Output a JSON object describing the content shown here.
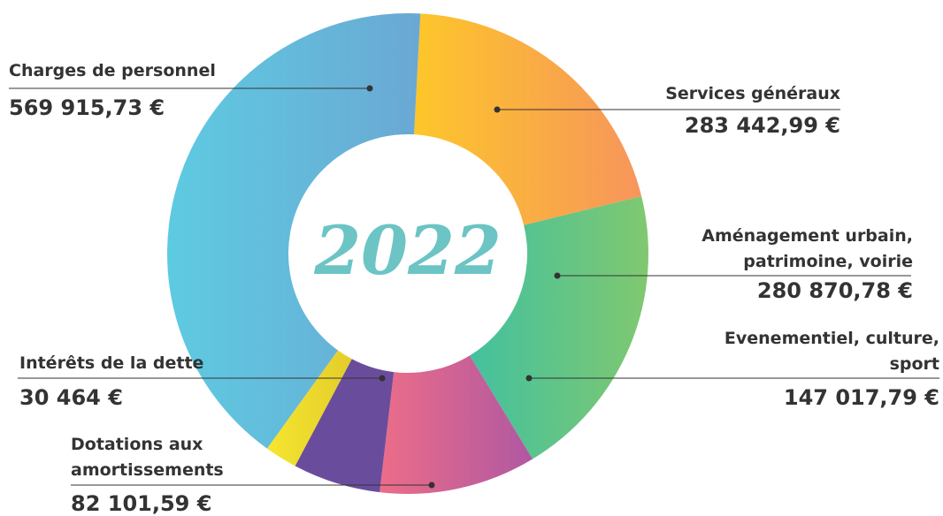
{
  "chart_data": {
    "type": "donut",
    "center_label": "2022",
    "categories": [
      "Services généraux",
      "Aménagement urbain, patrimoine, voirie",
      "Evenementiel, culture, sport",
      "Dotations aux amortissements",
      "Intérêts de la dette",
      "Charges de personnel"
    ],
    "values": [
      283442.99,
      280870.78,
      147017.79,
      82101.59,
      30464,
      569915.73
    ],
    "value_labels": [
      "283 442,99 €",
      "280 870,78 €",
      "147 017,79 €",
      "82 101,59 €",
      "30 464 €",
      "569 915,73 €"
    ],
    "colors": [
      "#f9b13e",
      "#5fc288",
      "#d9648f",
      "#6a4c9c",
      "#ecdc2e",
      "#62bde0"
    ]
  }
}
